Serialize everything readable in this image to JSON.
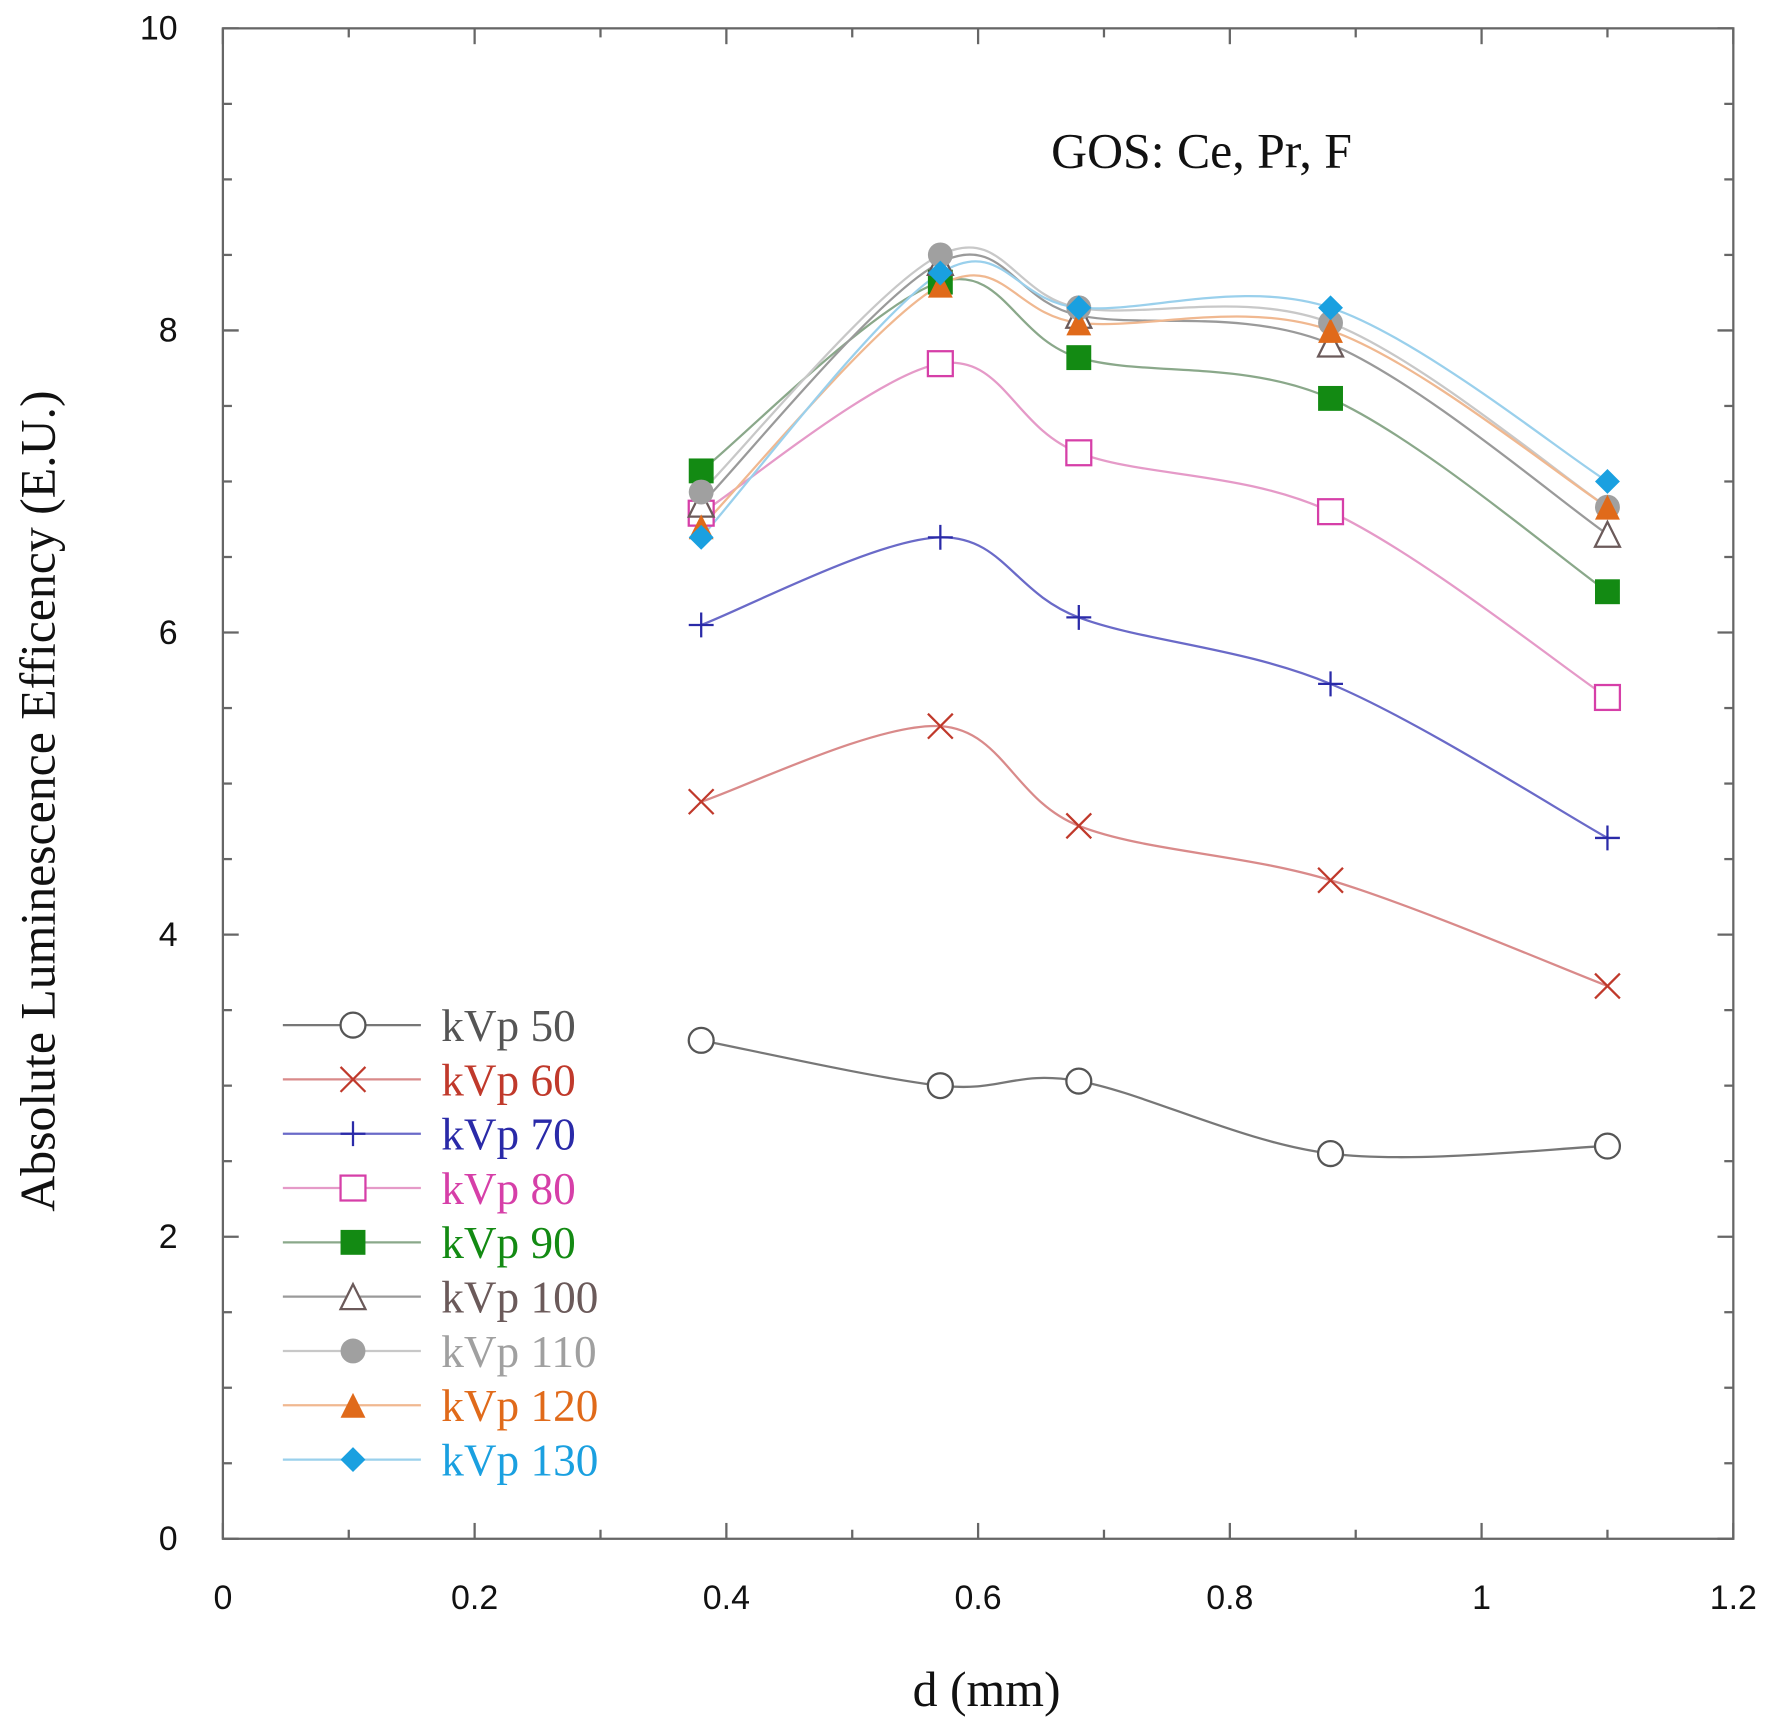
{
  "chart_data": {
    "type": "line",
    "title": "GOS: Ce, Pr, F",
    "xlabel": "d (mm)",
    "ylabel": "Absolute Luminescence Efficency (E.U.)",
    "xlim": [
      0,
      1.2
    ],
    "ylim": [
      0,
      10
    ],
    "xticks": [
      "0",
      "0.2",
      "0.4",
      "0.6",
      "0.8",
      "1",
      "1.2"
    ],
    "xtick_values": [
      0,
      0.2,
      0.4,
      0.6,
      0.8,
      1,
      1.2
    ],
    "yticks": [
      "0",
      "2",
      "4",
      "6",
      "8",
      "10"
    ],
    "ytick_values": [
      0,
      2,
      4,
      6,
      8,
      10
    ],
    "grid": false,
    "legend_position": "bottom-left",
    "x": [
      0.38,
      0.57,
      0.68,
      0.88,
      1.1
    ],
    "series": [
      {
        "name": "kVp 50",
        "color": "#555555",
        "line": "#777777",
        "marker": "circle-open",
        "values": [
          3.3,
          3.0,
          3.03,
          2.55,
          2.6
        ]
      },
      {
        "name": "kVp 60",
        "color": "#c0392b",
        "line": "#d98a8a",
        "marker": "x",
        "values": [
          4.88,
          5.38,
          4.72,
          4.36,
          3.66
        ]
      },
      {
        "name": "kVp 70",
        "color": "#2a2aa8",
        "line": "#6a6ac8",
        "marker": "plus",
        "values": [
          6.05,
          6.63,
          6.1,
          5.66,
          4.64
        ]
      },
      {
        "name": "kVp 80",
        "color": "#d63fa8",
        "line": "#e59ac8",
        "marker": "square-open",
        "values": [
          6.79,
          7.78,
          7.19,
          6.8,
          5.57
        ]
      },
      {
        "name": "kVp 90",
        "color": "#138a13",
        "line": "#8aa88a",
        "marker": "square",
        "values": [
          7.07,
          8.32,
          7.82,
          7.55,
          6.27
        ]
      },
      {
        "name": "kVp 100",
        "color": "#6b5a5a",
        "line": "#9a9a9a",
        "marker": "triangle-open",
        "values": [
          6.85,
          8.45,
          8.1,
          7.91,
          6.65
        ]
      },
      {
        "name": "kVp 110",
        "color": "#a0a0a0",
        "line": "#c8c8c8",
        "marker": "circle",
        "values": [
          6.93,
          8.5,
          8.15,
          8.05,
          6.83
        ]
      },
      {
        "name": "kVp 120",
        "color": "#e06a1a",
        "line": "#f0b890",
        "marker": "triangle",
        "values": [
          6.7,
          8.3,
          8.05,
          8.0,
          6.83
        ]
      },
      {
        "name": "kVp 130",
        "color": "#1aa0e0",
        "line": "#9ad0ec",
        "marker": "diamond",
        "values": [
          6.63,
          8.38,
          8.15,
          8.15,
          7.0
        ]
      }
    ]
  }
}
